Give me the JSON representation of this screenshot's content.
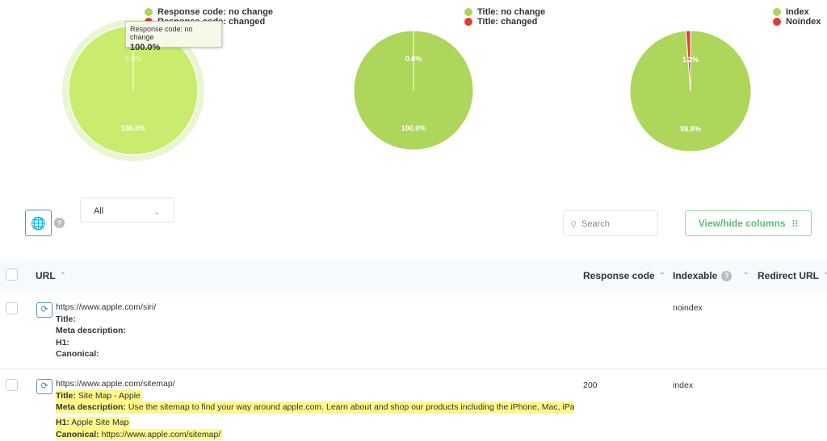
{
  "charts": [
    {
      "type": "pie",
      "legend": [
        "Response code: no change",
        "Response code: changed"
      ],
      "values": [
        100.0,
        0.0
      ],
      "labels": [
        "100.0%",
        "0.0%"
      ],
      "colors": [
        "#c9ec6e",
        "#d9412b"
      ],
      "hovered": true
    },
    {
      "type": "pie",
      "legend": [
        "Title: no change",
        "Title: changed"
      ],
      "values": [
        100.0,
        0.0
      ],
      "labels": [
        "100.0%",
        "0.0%"
      ],
      "colors": [
        "#add65a",
        "#d9412b"
      ]
    },
    {
      "type": "pie",
      "legend": [
        "Index",
        "Noindex"
      ],
      "values": [
        98.8,
        1.2
      ],
      "labels": [
        "98.8%",
        "1.2%"
      ],
      "colors": [
        "#add65a",
        "#d9412b"
      ]
    }
  ],
  "tooltip": {
    "label": "Response code: no change",
    "value": "100.0%"
  },
  "toolbar": {
    "filter_value": "All",
    "search_placeholder": "Search",
    "view_hide_label": "View/hide columns",
    "help": "?"
  },
  "table": {
    "headers": {
      "url": "URL",
      "response_code": "Response code",
      "indexable": "Indexable",
      "redirect_url": "Redirect URL"
    },
    "rows": [
      {
        "url": "https://www.apple.com/siri/",
        "title_label": "Title:",
        "title": "",
        "meta_label": "Meta description:",
        "meta": "",
        "h1_label": "H1:",
        "h1": "",
        "canonical_label": "Canonical:",
        "canonical": "",
        "response_code": "",
        "indexable": "noindex"
      },
      {
        "url": "https://www.apple.com/sitemap/",
        "title_label": "Title:",
        "title": "Site Map - Apple",
        "meta_label": "Meta description:",
        "meta": "Use the sitemap to find your way around apple.com. Learn about and shop our products including the iPhone, Mac, iPad, A",
        "h1_label": "H1:",
        "h1": "Apple Site Map",
        "canonical_label": "Canonical:",
        "canonical": "https://www.apple.com/sitemap/",
        "response_code": "200",
        "indexable": "index"
      }
    ]
  }
}
